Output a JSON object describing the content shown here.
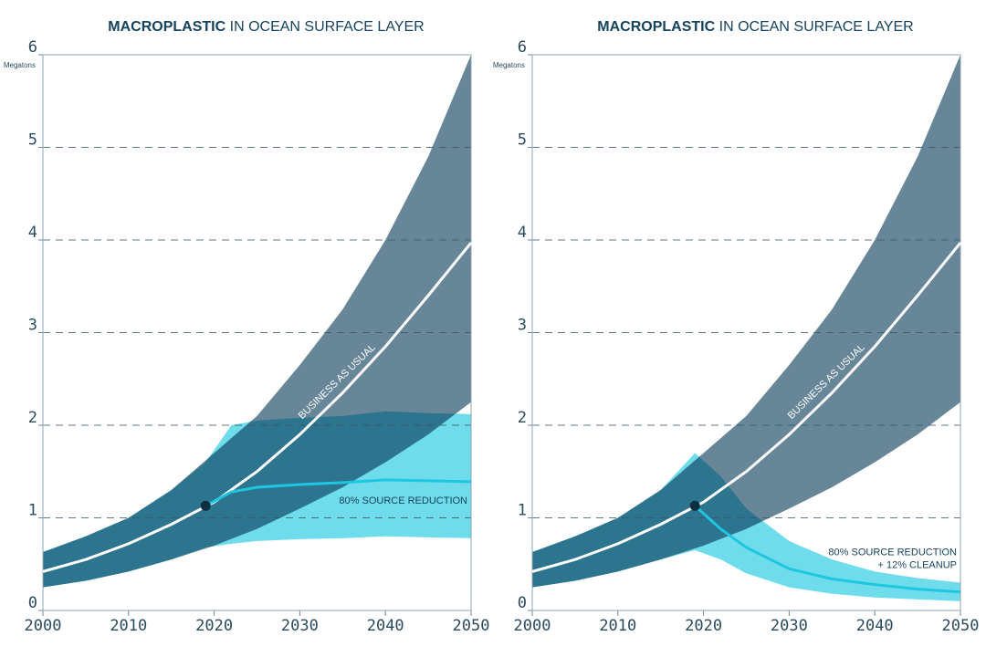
{
  "chart_data": [
    {
      "type": "line",
      "title": [
        "MACROPLASTIC",
        "IN OCEAN SURFACE LAYER"
      ],
      "y_label": "Megatons",
      "xlim": [
        2000,
        2050
      ],
      "xticks": [
        2000,
        2010,
        2020,
        2030,
        2040,
        2050
      ],
      "ylim": [
        0,
        6
      ],
      "yticks": [
        0,
        1,
        2,
        3,
        4,
        5,
        6
      ],
      "grid": true,
      "series": [
        {
          "name": "BUSINESS AS USUAL",
          "color": "#ffffff",
          "band_color": "#678799",
          "x": [
            2000,
            2005,
            2010,
            2015,
            2020,
            2025,
            2030,
            2035,
            2040,
            2045,
            2050
          ],
          "values": [
            0.42,
            0.55,
            0.72,
            0.93,
            1.17,
            1.5,
            1.9,
            2.35,
            2.85,
            3.4,
            3.97
          ],
          "upper": [
            0.63,
            0.8,
            1.0,
            1.3,
            1.7,
            2.1,
            2.65,
            3.25,
            4.0,
            4.9,
            6.0
          ],
          "lower": [
            0.25,
            0.32,
            0.42,
            0.55,
            0.7,
            0.88,
            1.1,
            1.33,
            1.6,
            1.9,
            2.25
          ]
        },
        {
          "name": "80% SOURCE REDUCTION",
          "color": "#1fc6e0",
          "band_color": "#6fdcec",
          "x": [
            2000,
            2005,
            2010,
            2015,
            2019,
            2022,
            2025,
            2030,
            2035,
            2040,
            2045,
            2050
          ],
          "values": [
            null,
            null,
            null,
            null,
            1.13,
            1.28,
            1.33,
            1.36,
            1.38,
            1.41,
            1.4,
            1.39
          ],
          "upper": [
            0.63,
            0.8,
            1.0,
            1.3,
            1.6,
            2.0,
            2.05,
            2.08,
            2.1,
            2.15,
            2.13,
            2.12
          ],
          "lower": [
            0.25,
            0.32,
            0.42,
            0.55,
            0.68,
            0.72,
            0.75,
            0.77,
            0.78,
            0.8,
            0.79,
            0.78
          ]
        }
      ],
      "marker": {
        "x": 2019,
        "y": 1.13,
        "color": "#0e2f42"
      }
    },
    {
      "type": "line",
      "title": [
        "MACROPLASTIC",
        "IN OCEAN SURFACE LAYER"
      ],
      "y_label": "Megatons",
      "xlim": [
        2000,
        2050
      ],
      "xticks": [
        2000,
        2010,
        2020,
        2030,
        2040,
        2050
      ],
      "ylim": [
        0,
        6
      ],
      "yticks": [
        0,
        1,
        2,
        3,
        4,
        5,
        6
      ],
      "grid": true,
      "series": [
        {
          "name": "BUSINESS AS USUAL",
          "color": "#ffffff",
          "band_color": "#678799",
          "x": [
            2000,
            2005,
            2010,
            2015,
            2020,
            2025,
            2030,
            2035,
            2040,
            2045,
            2050
          ],
          "values": [
            0.42,
            0.55,
            0.72,
            0.93,
            1.17,
            1.5,
            1.9,
            2.35,
            2.85,
            3.4,
            3.97
          ],
          "upper": [
            0.63,
            0.8,
            1.0,
            1.3,
            1.7,
            2.1,
            2.65,
            3.25,
            4.0,
            4.9,
            6.0
          ],
          "lower": [
            0.25,
            0.32,
            0.42,
            0.55,
            0.7,
            0.88,
            1.1,
            1.33,
            1.6,
            1.9,
            2.25
          ]
        },
        {
          "name": [
            "80% SOURCE REDUCTION",
            "+ 12% CLEANUP"
          ],
          "color": "#1fc6e0",
          "band_color": "#6fdcec",
          "x": [
            2000,
            2005,
            2010,
            2015,
            2019,
            2022,
            2025,
            2030,
            2035,
            2040,
            2045,
            2050
          ],
          "values": [
            null,
            null,
            null,
            null,
            1.13,
            0.88,
            0.68,
            0.45,
            0.34,
            0.28,
            0.23,
            0.2
          ],
          "upper": [
            0.63,
            0.8,
            1.0,
            1.3,
            1.7,
            1.45,
            1.1,
            0.75,
            0.55,
            0.42,
            0.35,
            0.3
          ],
          "lower": [
            0.25,
            0.32,
            0.42,
            0.55,
            0.65,
            0.55,
            0.4,
            0.25,
            0.18,
            0.14,
            0.12,
            0.1
          ]
        }
      ],
      "marker": {
        "x": 2019,
        "y": 1.13,
        "color": "#0e2f42"
      }
    }
  ]
}
